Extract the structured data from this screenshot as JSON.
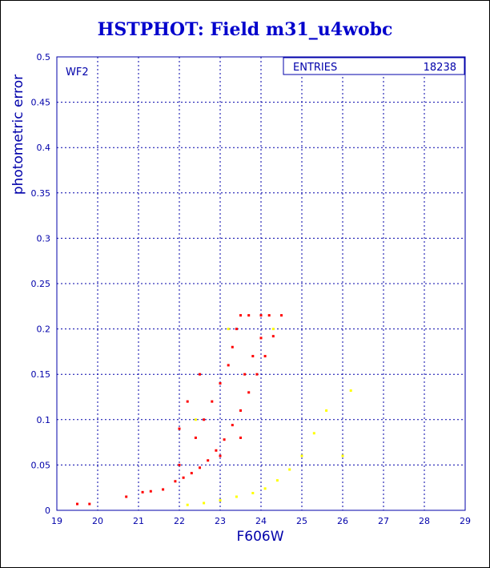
{
  "title": "HSTPHOT: Field m31_u4wobc",
  "colors": {
    "frame": "#0000aa",
    "grid": "#0000aa",
    "text": "#0000aa",
    "title": "#0000cc",
    "main_points": "#ff0000",
    "faint_points": "#ffff00",
    "dark_points": "#7f0000"
  },
  "stats": {
    "label": "ENTRIES",
    "value": "18238"
  },
  "chart_data": {
    "type": "scatter",
    "title": "HSTPHOT: Field m31_u4wobc",
    "xlabel": "F606W",
    "ylabel": "photometric error",
    "panel_label": "WF2",
    "xlim": [
      19,
      29
    ],
    "ylim": [
      0,
      0.5
    ],
    "x_ticks": [
      "19",
      "20",
      "21",
      "22",
      "23",
      "24",
      "25",
      "26",
      "27",
      "28",
      "29"
    ],
    "y_ticks": [
      "0",
      "0.05",
      "0.1",
      "0.15",
      "0.2",
      "0.25",
      "0.3",
      "0.35",
      "0.4",
      "0.45",
      "0.5"
    ],
    "grid": true,
    "series": [
      {
        "color": "#ff0000",
        "points": [
          [
            19.5,
            0.007
          ],
          [
            19.8,
            0.007
          ],
          [
            20.7,
            0.015
          ],
          [
            21.1,
            0.02
          ],
          [
            21.3,
            0.021
          ],
          [
            21.6,
            0.023
          ],
          [
            21.9,
            0.032
          ],
          [
            22.1,
            0.036
          ],
          [
            22.3,
            0.041
          ],
          [
            22.5,
            0.047
          ],
          [
            22.7,
            0.055
          ],
          [
            22.9,
            0.066
          ],
          [
            23.1,
            0.078
          ],
          [
            23.3,
            0.094
          ],
          [
            23.5,
            0.11
          ],
          [
            23.7,
            0.13
          ],
          [
            23.9,
            0.15
          ],
          [
            24.1,
            0.17
          ],
          [
            24.3,
            0.192
          ],
          [
            24.5,
            0.215
          ],
          [
            22.4,
            0.08
          ],
          [
            22.6,
            0.1
          ],
          [
            22.8,
            0.12
          ],
          [
            23.0,
            0.14
          ],
          [
            23.2,
            0.16
          ],
          [
            23.3,
            0.18
          ],
          [
            23.4,
            0.2
          ],
          [
            23.5,
            0.215
          ],
          [
            23.7,
            0.215
          ],
          [
            24.0,
            0.215
          ],
          [
            24.2,
            0.215
          ],
          [
            22.0,
            0.09
          ],
          [
            22.2,
            0.12
          ],
          [
            22.5,
            0.15
          ],
          [
            23.6,
            0.15
          ],
          [
            23.8,
            0.17
          ],
          [
            24.0,
            0.19
          ],
          [
            23.0,
            0.06
          ],
          [
            23.5,
            0.08
          ],
          [
            22.0,
            0.05
          ]
        ]
      },
      {
        "color": "#ffff00",
        "points": [
          [
            22.2,
            0.006
          ],
          [
            22.6,
            0.008
          ],
          [
            23.0,
            0.011
          ],
          [
            23.4,
            0.015
          ],
          [
            23.8,
            0.019
          ],
          [
            24.1,
            0.024
          ],
          [
            24.4,
            0.033
          ],
          [
            24.7,
            0.045
          ],
          [
            25.0,
            0.06
          ],
          [
            25.3,
            0.085
          ],
          [
            25.6,
            0.11
          ],
          [
            26.2,
            0.132
          ],
          [
            26.0,
            0.06
          ],
          [
            23.2,
            0.2
          ],
          [
            24.3,
            0.2
          ],
          [
            22.4,
            0.1
          ]
        ]
      }
    ]
  }
}
